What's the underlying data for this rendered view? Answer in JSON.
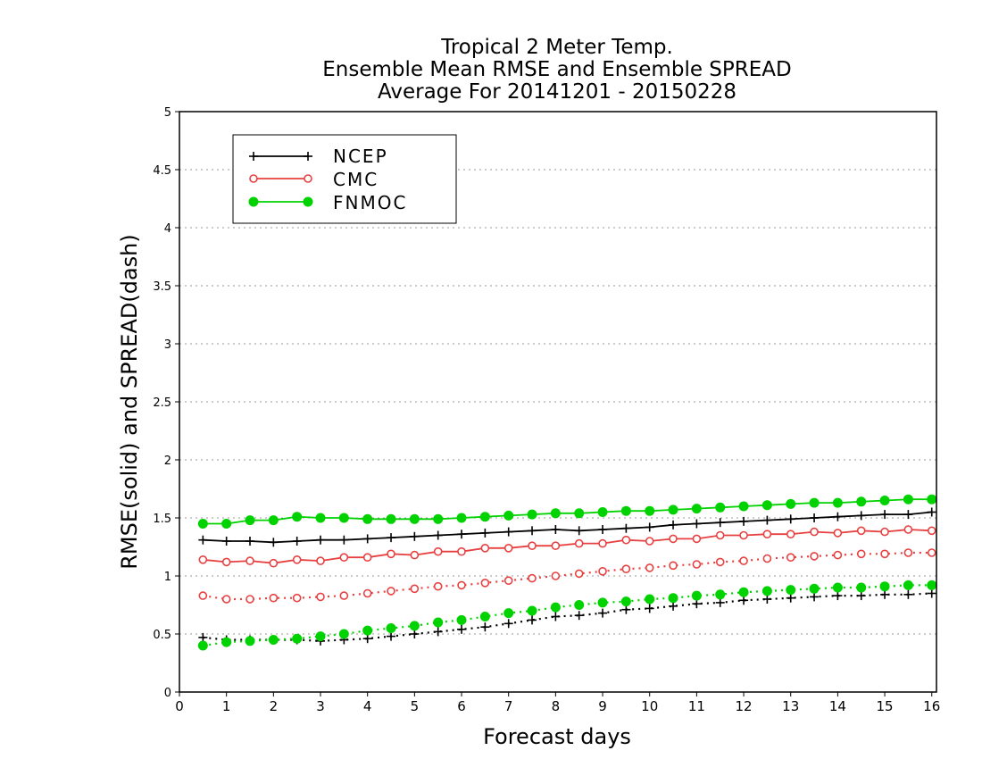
{
  "chart_data": {
    "type": "line",
    "title": [
      "Tropical 2 Meter Temp.",
      "Ensemble Mean RMSE and Ensemble SPREAD",
      "Average For 20141201 - 20150228"
    ],
    "xlabel": "Forecast days",
    "ylabel": "RMSE(solid) and SPREAD(dash)",
    "xlim": [
      0,
      16.1
    ],
    "ylim": [
      0,
      5
    ],
    "xticks": [
      "0",
      "1",
      "2",
      "3",
      "4",
      "5",
      "6",
      "7",
      "8",
      "9",
      "10",
      "11",
      "12",
      "13",
      "14",
      "15",
      "16"
    ],
    "yticks": [
      "0",
      "0.5",
      "1",
      "1.5",
      "2",
      "2.5",
      "3",
      "3.5",
      "4",
      "4.5",
      "5"
    ],
    "grid": "horizontal dotted",
    "legend": {
      "position": "top-left",
      "entries": [
        "NCEP",
        "CMC",
        "FNMOC"
      ]
    },
    "x": [
      0.5,
      1,
      1.5,
      2,
      2.5,
      3,
      3.5,
      4,
      4.5,
      5,
      5.5,
      6,
      6.5,
      7,
      7.5,
      8,
      8.5,
      9,
      9.5,
      10,
      10.5,
      11,
      11.5,
      12,
      12.5,
      13,
      13.5,
      14,
      14.5,
      15,
      15.5,
      16
    ],
    "series": [
      {
        "name": "NCEP",
        "measure": "RMSE",
        "style": "solid",
        "color": "#000000",
        "marker": "plus",
        "values": [
          1.31,
          1.3,
          1.3,
          1.29,
          1.3,
          1.31,
          1.31,
          1.32,
          1.33,
          1.34,
          1.35,
          1.36,
          1.37,
          1.38,
          1.39,
          1.4,
          1.39,
          1.4,
          1.41,
          1.42,
          1.44,
          1.45,
          1.46,
          1.47,
          1.48,
          1.49,
          1.5,
          1.51,
          1.52,
          1.53,
          1.53,
          1.55
        ]
      },
      {
        "name": "CMC",
        "measure": "RMSE",
        "style": "solid",
        "color": "#e84040",
        "marker": "open-circle",
        "values": [
          1.14,
          1.12,
          1.13,
          1.11,
          1.14,
          1.13,
          1.16,
          1.16,
          1.19,
          1.18,
          1.21,
          1.21,
          1.24,
          1.24,
          1.26,
          1.26,
          1.28,
          1.28,
          1.31,
          1.3,
          1.32,
          1.32,
          1.35,
          1.35,
          1.36,
          1.36,
          1.38,
          1.37,
          1.39,
          1.38,
          1.4,
          1.39
        ]
      },
      {
        "name": "FNMOC",
        "measure": "RMSE",
        "style": "solid",
        "color": "#00d200",
        "marker": "filled-circle",
        "values": [
          1.45,
          1.45,
          1.48,
          1.48,
          1.51,
          1.5,
          1.5,
          1.49,
          1.49,
          1.49,
          1.49,
          1.5,
          1.51,
          1.52,
          1.53,
          1.54,
          1.54,
          1.55,
          1.56,
          1.56,
          1.57,
          1.58,
          1.59,
          1.6,
          1.61,
          1.62,
          1.63,
          1.63,
          1.64,
          1.65,
          1.66,
          1.66
        ]
      },
      {
        "name": "NCEP",
        "measure": "SPREAD",
        "style": "dash",
        "color": "#000000",
        "marker": "plus",
        "values": [
          0.47,
          0.45,
          0.45,
          0.45,
          0.45,
          0.44,
          0.45,
          0.46,
          0.48,
          0.5,
          0.52,
          0.54,
          0.56,
          0.59,
          0.62,
          0.65,
          0.66,
          0.68,
          0.71,
          0.72,
          0.74,
          0.76,
          0.77,
          0.79,
          0.8,
          0.81,
          0.82,
          0.83,
          0.83,
          0.84,
          0.84,
          0.85
        ]
      },
      {
        "name": "CMC",
        "measure": "SPREAD",
        "style": "dash",
        "color": "#e84040",
        "marker": "open-circle",
        "values": [
          0.83,
          0.8,
          0.8,
          0.81,
          0.81,
          0.82,
          0.83,
          0.85,
          0.87,
          0.89,
          0.91,
          0.92,
          0.94,
          0.96,
          0.98,
          1.0,
          1.02,
          1.04,
          1.06,
          1.07,
          1.09,
          1.1,
          1.12,
          1.13,
          1.15,
          1.16,
          1.17,
          1.18,
          1.19,
          1.19,
          1.2,
          1.2
        ]
      },
      {
        "name": "FNMOC",
        "measure": "SPREAD",
        "style": "dash",
        "color": "#00d200",
        "marker": "filled-circle",
        "values": [
          0.4,
          0.43,
          0.44,
          0.45,
          0.46,
          0.48,
          0.5,
          0.53,
          0.55,
          0.57,
          0.6,
          0.62,
          0.65,
          0.68,
          0.7,
          0.73,
          0.75,
          0.77,
          0.78,
          0.8,
          0.81,
          0.83,
          0.84,
          0.86,
          0.87,
          0.88,
          0.89,
          0.9,
          0.9,
          0.91,
          0.92,
          0.92
        ]
      }
    ]
  }
}
